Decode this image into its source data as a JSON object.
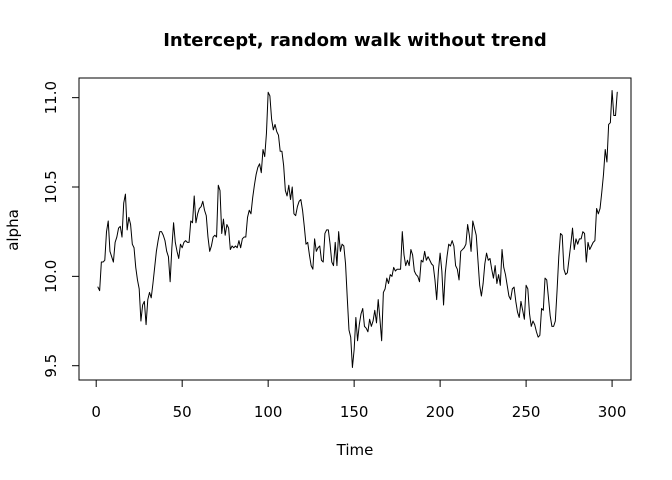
{
  "chart_data": {
    "type": "line",
    "title": "Intercept, random walk without trend",
    "xlabel": "Time",
    "ylabel": "alpha",
    "xlim": [
      -10,
      311
    ],
    "ylim": [
      9.42,
      11.11
    ],
    "x_ticks": [
      0,
      50,
      100,
      150,
      200,
      250,
      300
    ],
    "x_tick_labels": [
      "0",
      "50",
      "100",
      "150",
      "200",
      "250",
      "300"
    ],
    "y_ticks": [
      9.5,
      10.0,
      10.5,
      11.0
    ],
    "y_tick_labels": [
      "9.5",
      "10.0",
      "10.5",
      "11.0"
    ],
    "grid": false,
    "legend": "none",
    "series": [
      {
        "color": "#000000",
        "x_start": 1,
        "x_step": 1,
        "values": [
          9.94,
          9.92,
          10.08,
          10.08,
          10.09,
          10.25,
          10.31,
          10.14,
          10.11,
          10.08,
          10.19,
          10.22,
          10.27,
          10.28,
          10.22,
          10.41,
          10.46,
          10.26,
          10.33,
          10.29,
          10.18,
          10.16,
          10.05,
          9.98,
          9.93,
          9.75,
          9.84,
          9.86,
          9.73,
          9.87,
          9.91,
          9.88,
          9.96,
          10.05,
          10.14,
          10.2,
          10.25,
          10.25,
          10.23,
          10.2,
          10.14,
          10.11,
          9.97,
          10.16,
          10.3,
          10.19,
          10.14,
          10.1,
          10.18,
          10.16,
          10.19,
          10.2,
          10.19,
          10.19,
          10.31,
          10.3,
          10.45,
          10.3,
          10.35,
          10.38,
          10.39,
          10.42,
          10.37,
          10.34,
          10.22,
          10.14,
          10.17,
          10.22,
          10.23,
          10.22,
          10.51,
          10.48,
          10.24,
          10.32,
          10.23,
          10.29,
          10.27,
          10.15,
          10.17,
          10.16,
          10.17,
          10.16,
          10.2,
          10.16,
          10.21,
          10.22,
          10.22,
          10.33,
          10.37,
          10.35,
          10.44,
          10.51,
          10.57,
          10.61,
          10.63,
          10.58,
          10.71,
          10.67,
          10.8,
          11.03,
          11.01,
          10.88,
          10.82,
          10.85,
          10.81,
          10.79,
          10.7,
          10.7,
          10.62,
          10.48,
          10.45,
          10.51,
          10.43,
          10.5,
          10.35,
          10.34,
          10.39,
          10.42,
          10.43,
          10.37,
          10.28,
          10.18,
          10.19,
          10.12,
          10.06,
          10.04,
          10.21,
          10.14,
          10.16,
          10.17,
          10.09,
          10.08,
          10.24,
          10.26,
          10.26,
          10.18,
          10.08,
          10.06,
          10.19,
          10.06,
          10.25,
          10.14,
          10.18,
          10.17,
          10.07,
          9.88,
          9.7,
          9.66,
          9.49,
          9.59,
          9.77,
          9.64,
          9.73,
          9.79,
          9.82,
          9.72,
          9.71,
          9.69,
          9.76,
          9.72,
          9.75,
          9.81,
          9.74,
          9.87,
          9.76,
          9.64,
          9.91,
          9.93,
          9.99,
          9.96,
          10.01,
          10.0,
          10.05,
          10.03,
          10.04,
          10.04,
          10.04,
          10.25,
          10.12,
          10.06,
          10.09,
          10.06,
          10.15,
          10.12,
          10.03,
          10.01,
          10.0,
          9.97,
          10.09,
          10.08,
          10.14,
          10.09,
          10.11,
          10.09,
          10.07,
          10.06,
          9.98,
          9.87,
          10.03,
          10.13,
          10.03,
          9.84,
          10.02,
          10.11,
          10.18,
          10.17,
          10.2,
          10.17,
          10.06,
          10.04,
          9.98,
          10.14,
          10.15,
          10.16,
          10.18,
          10.29,
          10.23,
          10.14,
          10.31,
          10.27,
          10.23,
          10.09,
          9.95,
          9.89,
          9.96,
          10.07,
          10.13,
          10.09,
          10.1,
          10.04,
          9.99,
          10.06,
          9.96,
          10.01,
          9.95,
          10.15,
          10.05,
          10.01,
          9.95,
          9.89,
          9.87,
          9.93,
          9.94,
          9.86,
          9.8,
          9.77,
          9.86,
          9.81,
          9.76,
          9.95,
          9.93,
          9.79,
          9.72,
          9.75,
          9.73,
          9.69,
          9.66,
          9.67,
          9.82,
          9.81,
          9.99,
          9.98,
          9.88,
          9.78,
          9.72,
          9.72,
          9.75,
          9.92,
          10.11,
          10.24,
          10.23,
          10.04,
          10.01,
          10.02,
          10.1,
          10.18,
          10.27,
          10.15,
          10.21,
          10.18,
          10.21,
          10.21,
          10.25,
          10.24,
          10.08,
          10.19,
          10.15,
          10.17,
          10.19,
          10.2,
          10.38,
          10.35,
          10.38,
          10.47,
          10.57,
          10.71,
          10.64,
          10.85,
          10.86,
          11.04,
          10.9,
          10.9,
          11.03
        ]
      }
    ]
  }
}
